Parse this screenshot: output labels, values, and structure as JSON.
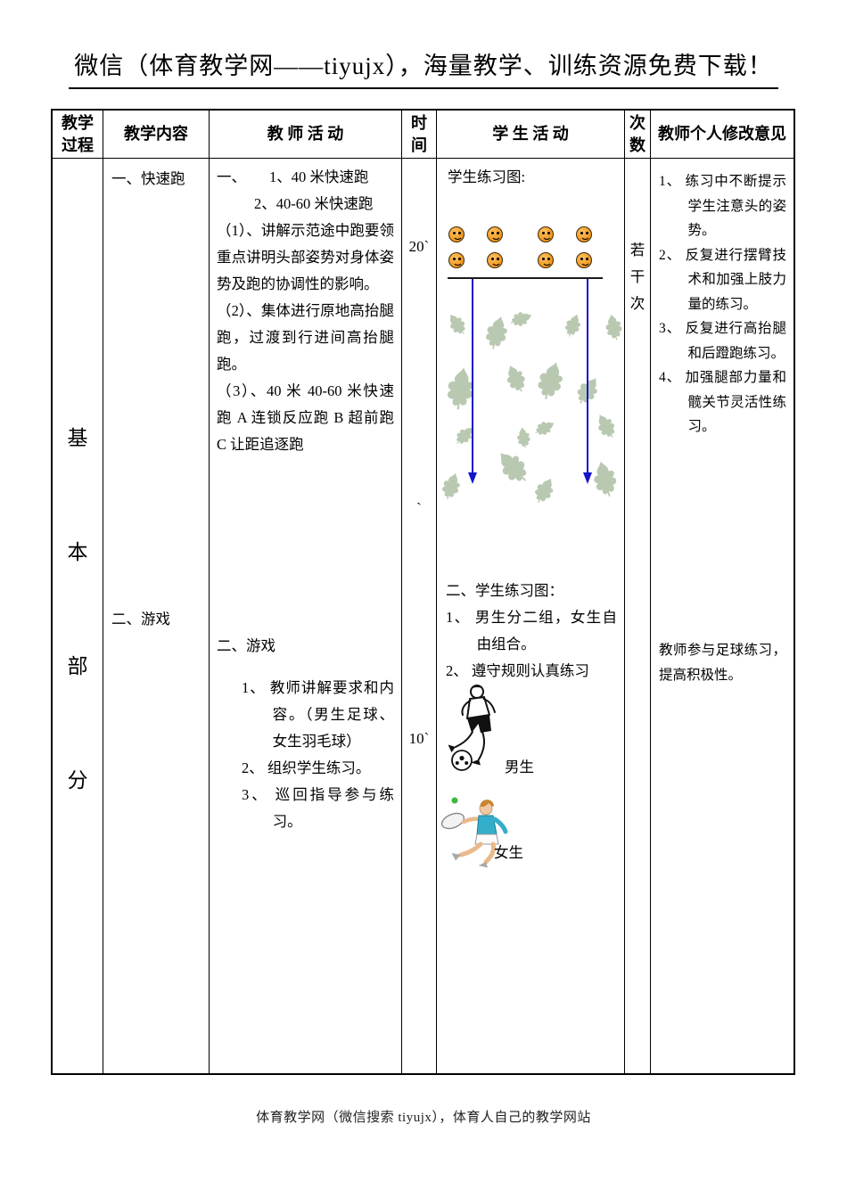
{
  "title": "微信（体育教学网——tiyujx），海量教学、训练资源免费下载！",
  "footer": "体育教学网（微信搜索 tiyujx），体育人自己的教学网站",
  "header": {
    "process": [
      "教学",
      "过程"
    ],
    "content": "教学内容",
    "teacher": "教 师 活 动",
    "time": [
      "时",
      "间"
    ],
    "student": "学 生 活 动",
    "times": [
      "次",
      "数"
    ],
    "comments": "教师个人修改意见"
  },
  "process_label": [
    "基",
    "本",
    "部",
    "分"
  ],
  "content_col": {
    "item1": "一、快速跑",
    "item2": "二、游戏"
  },
  "teacher_col": {
    "s1_head": "一、",
    "s1_sub1": "1、40 米快速跑",
    "s1_sub2": "2、40-60 米快速跑",
    "s1_p1": "（1）、讲解示范途中跑要领重点讲明头部姿势对身体姿势及跑的协调性的影响。",
    "s1_p2": "（2）、集体进行原地高抬腿跑，过渡到行进间高抬腿跑。",
    "s1_p3": "（3）、40 米 40-60 米快速跑 A 连锁反应跑 B 超前跑 C 让距追逐跑",
    "s2_head": "二、游戏",
    "s2_items": [
      "1、 教师讲解要求和内容。（男生足球、女生羽毛球）",
      "2、 组织学生练习。",
      "3、 巡回指导参与练习。"
    ]
  },
  "time_col": {
    "t1": "20`",
    "stray": "`",
    "t2": "10`"
  },
  "student_col": {
    "s1_title": "学生练习图:",
    "diagram": {
      "smiley_rows": 2,
      "smiley_cols": 4
    },
    "s2_title": "二、学生练习图：",
    "s2_items": [
      "1、 男生分二组，女生自由组合。",
      "2、 遵守规则认真练习"
    ],
    "boys_label": "男生",
    "girls_label": "女生"
  },
  "times_col": [
    "若",
    "干",
    "次"
  ],
  "comments_col": {
    "items": [
      "1、 练习中不断提示学生注意头的姿势。",
      "2、 反复进行摆臂技术和加强上肢力量的练习。",
      "3、 反复进行高抬腿和后蹬跑练习。",
      "4、 加强腿部力量和髋关节灵活性练习。"
    ],
    "note": "教师参与足球练习，提高积极性。"
  },
  "colors": {
    "arrow_blue": "#1414CC",
    "smiley_orange": "#EF9722",
    "leaf_green": "#B9C9B1",
    "shirt_teal": "#35AECB"
  }
}
